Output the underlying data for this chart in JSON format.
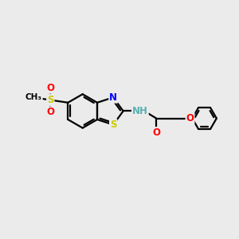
{
  "bg_color": "#ebebeb",
  "bond_color": "#000000",
  "bond_width": 1.6,
  "atom_colors": {
    "S_ring": "#cccc00",
    "S_sulfonyl": "#cccc00",
    "N": "#0000ff",
    "O": "#ff0000",
    "H": "#5aafaf",
    "C": "#000000"
  },
  "font_size": 8.5,
  "xlim": [
    0,
    10
  ],
  "ylim": [
    0,
    10
  ]
}
